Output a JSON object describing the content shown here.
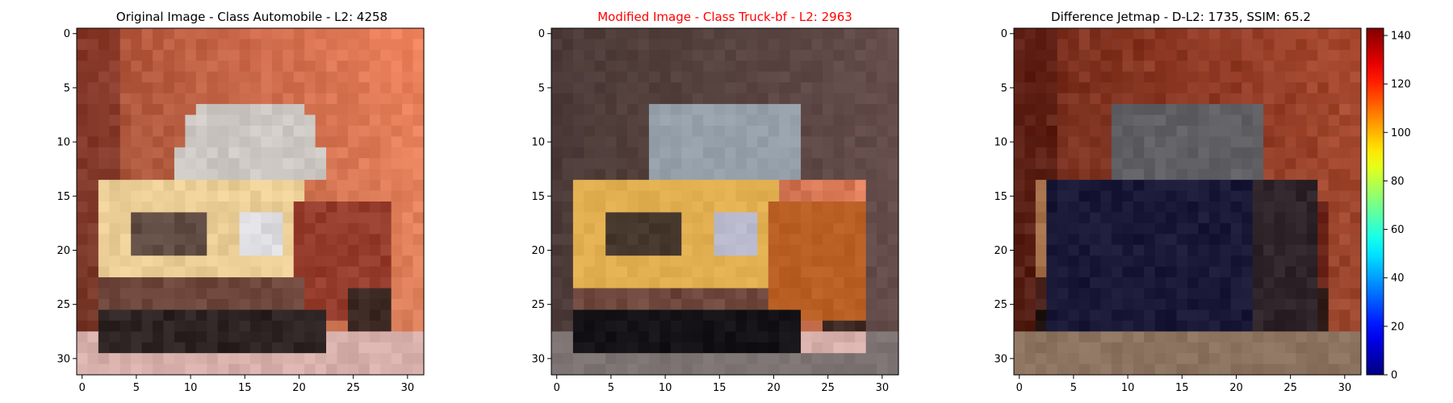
{
  "panels": [
    {
      "title": "Original Image - Class Automobile - L2: 4258",
      "title_color": "#000000",
      "variant": "original",
      "x_ticks": [
        "0",
        "5",
        "10",
        "15",
        "20",
        "25",
        "30"
      ],
      "y_ticks": [
        "0",
        "5",
        "10",
        "15",
        "20",
        "25",
        "30"
      ]
    },
    {
      "title": "Modified Image - Class Truck-bf - L2: 2963",
      "title_color": "#ff0000",
      "variant": "modified",
      "x_ticks": [
        "0",
        "5",
        "10",
        "15",
        "20",
        "25",
        "30"
      ],
      "y_ticks": [
        "0",
        "5",
        "10",
        "15",
        "20",
        "25",
        "30"
      ]
    },
    {
      "title": "Difference Jetmap - D-L2: 1735, SSIM: 65.2",
      "title_color": "#000000",
      "variant": "difference",
      "x_ticks": [
        "0",
        "5",
        "10",
        "15",
        "20",
        "25",
        "30"
      ],
      "y_ticks": [
        "0",
        "5",
        "10",
        "15",
        "20",
        "25",
        "30"
      ]
    }
  ],
  "colorbar": {
    "ticks": [
      "0",
      "20",
      "40",
      "60",
      "80",
      "100",
      "120",
      "140"
    ],
    "min": 0,
    "max": 143
  }
}
